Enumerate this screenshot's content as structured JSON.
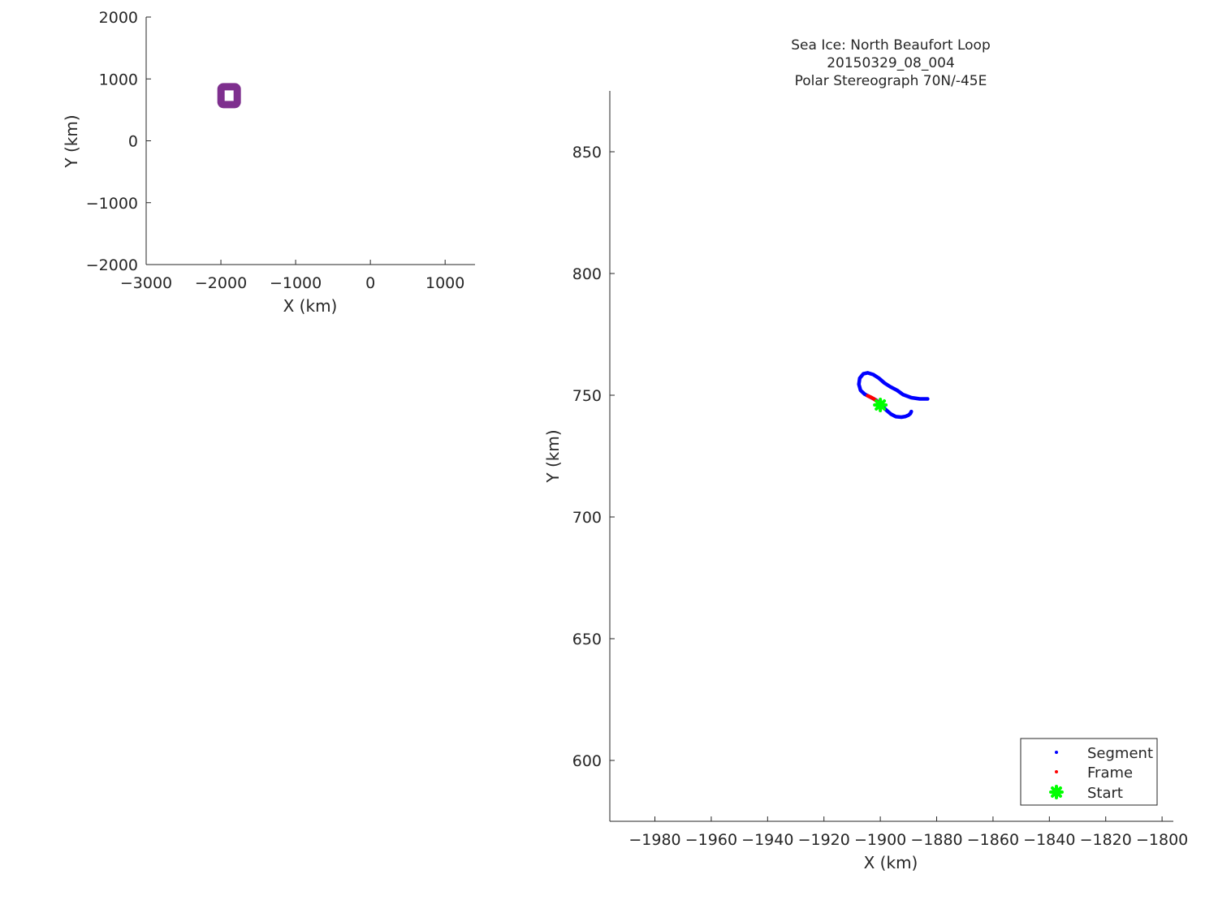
{
  "chart_data": [
    {
      "id": "overview",
      "type": "scatter",
      "xlabel": "X (km)",
      "ylabel": "Y (km)",
      "xlim": [
        -3000,
        1400
      ],
      "ylim": [
        -2000,
        2000
      ],
      "xticks": [
        -3000,
        -2000,
        -1000,
        0,
        1000
      ],
      "yticks": [
        2000,
        1000,
        0,
        -1000,
        -2000
      ],
      "xtick_labels": [
        "−3000",
        "−2000",
        "−1000",
        "0",
        "1000"
      ],
      "ytick_labels": [
        "2000",
        "1000",
        "0",
        "−1000",
        "−2000"
      ],
      "grid": false,
      "box": false,
      "marker_color": "#7e2f8e",
      "location_marker": {
        "x": -1890,
        "y": 730
      }
    },
    {
      "id": "detail",
      "type": "scatter",
      "title": [
        "Sea Ice: North Beaufort Loop",
        "20150329_08_004",
        "Polar Stereograph 70N/-45E"
      ],
      "xlabel": "X (km)",
      "ylabel": "Y (km)",
      "xlim": [
        -1996,
        -1796
      ],
      "ylim": [
        575,
        875
      ],
      "xticks": [
        -1980,
        -1960,
        -1940,
        -1920,
        -1900,
        -1880,
        -1860,
        -1840,
        -1820,
        -1800
      ],
      "yticks": [
        850,
        800,
        750,
        700,
        650,
        600
      ],
      "xtick_labels": [
        "−1980",
        "−1960",
        "−1940",
        "−1920",
        "−1900",
        "−1880",
        "−1860",
        "−1840",
        "−1820",
        "−1800"
      ],
      "ytick_labels": [
        "850",
        "800",
        "750",
        "700",
        "650",
        "600"
      ],
      "grid": false,
      "box": false,
      "legend": {
        "placement": "bottom-right",
        "entries": [
          "Segment",
          "Frame",
          "Start"
        ]
      },
      "series": [
        {
          "name": "Segment",
          "color": "#0000ff",
          "x": [
            -1883.2,
            -1886,
            -1889,
            -1892,
            -1894,
            -1896.5,
            -1898.5,
            -1900.5,
            -1902.5,
            -1904.5,
            -1906,
            -1907.3,
            -1907.6,
            -1907,
            -1905.5,
            -1903.5,
            -1901.5,
            -1900.2,
            -1899.3,
            -1898,
            -1896.3,
            -1894.5,
            -1892.5,
            -1891,
            -1890,
            -1889.3,
            -1889
          ],
          "y": [
            748.5,
            748.5,
            749,
            750.3,
            752,
            753.5,
            755,
            757,
            758.5,
            759.2,
            758.8,
            757,
            754.5,
            752,
            750.4,
            749.2,
            748,
            746.5,
            745.5,
            744,
            742.3,
            741.2,
            741,
            741.3,
            741.8,
            742.5,
            743.3
          ]
        },
        {
          "name": "Frame",
          "color": "#ff0000",
          "x": [
            -1904.5,
            -1903.4,
            -1902.4,
            -1901.5,
            -1900.8
          ],
          "y": [
            749.8,
            749.2,
            748.6,
            747.8,
            747
          ]
        },
        {
          "name": "Start",
          "color": "#00ff00",
          "x": [
            -1900
          ],
          "y": [
            746
          ]
        }
      ]
    }
  ]
}
